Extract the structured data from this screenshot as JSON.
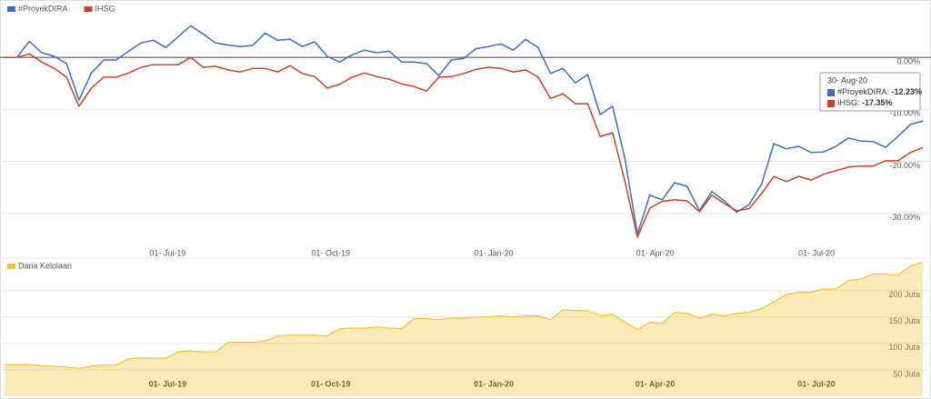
{
  "chart_data": [
    {
      "type": "line",
      "x": [
        "2019-03-31",
        "2019-04-07",
        "2019-04-14",
        "2019-04-21",
        "2019-04-28",
        "2019-05-05",
        "2019-05-12",
        "2019-05-19",
        "2019-05-26",
        "2019-06-02",
        "2019-06-09",
        "2019-06-16",
        "2019-06-23",
        "2019-06-30",
        "2019-07-07",
        "2019-07-14",
        "2019-07-21",
        "2019-07-28",
        "2019-08-04",
        "2019-08-11",
        "2019-08-18",
        "2019-08-25",
        "2019-09-01",
        "2019-09-08",
        "2019-09-15",
        "2019-09-22",
        "2019-09-29",
        "2019-10-06",
        "2019-10-13",
        "2019-10-20",
        "2019-10-27",
        "2019-11-03",
        "2019-11-10",
        "2019-11-17",
        "2019-11-24",
        "2019-12-01",
        "2019-12-08",
        "2019-12-15",
        "2019-12-22",
        "2019-12-29",
        "2020-01-05",
        "2020-01-12",
        "2020-01-19",
        "2020-01-26",
        "2020-02-02",
        "2020-02-09",
        "2020-02-16",
        "2020-02-23",
        "2020-03-01",
        "2020-03-08",
        "2020-03-15",
        "2020-03-22",
        "2020-03-29",
        "2020-04-05",
        "2020-04-12",
        "2020-04-19",
        "2020-04-26",
        "2020-05-03",
        "2020-05-10",
        "2020-05-17",
        "2020-05-24",
        "2020-05-31",
        "2020-06-07",
        "2020-06-14",
        "2020-06-21",
        "2020-06-28",
        "2020-07-05",
        "2020-07-12",
        "2020-07-19",
        "2020-07-26",
        "2020-08-02",
        "2020-08-09",
        "2020-08-16",
        "2020-08-23",
        "2020-08-30"
      ],
      "series": [
        {
          "name": "#ProyekDIRA",
          "color": "#3d6cc0",
          "values": [
            0,
            0,
            3.1,
            0.9,
            0.2,
            -1.2,
            -8.2,
            -3,
            -0.5,
            -0.5,
            1.2,
            2.8,
            3.3,
            1.9,
            4.0,
            6.1,
            4.5,
            2.8,
            2.4,
            2.1,
            2.3,
            4.7,
            3.3,
            3.5,
            2.1,
            3.0,
            0.2,
            -0.9,
            0.5,
            1.4,
            0.9,
            1.2,
            -0.9,
            -0.9,
            -1.2,
            -3.5,
            -0.5,
            -0.2,
            1.7,
            2.1,
            2.6,
            1.4,
            3.5,
            1.9,
            -3.1,
            -2.1,
            -4.9,
            -3.3,
            -11.0,
            -9.4,
            -19.5,
            -34.0,
            -26.5,
            -27.4,
            -24.1,
            -24.8,
            -29.5,
            -25.8,
            -27.6,
            -29.8,
            -28.3,
            -24.4,
            -16.6,
            -17.6,
            -17.1,
            -18.3,
            -18.2,
            -17.1,
            -15.5,
            -16.1,
            -16.2,
            -17.3,
            -15.2,
            -12.9,
            -12.23
          ]
        },
        {
          "name": "IHSG",
          "color": "#cc4125",
          "values": [
            0,
            0,
            0.7,
            -0.9,
            -2.1,
            -3.8,
            -9.4,
            -5.9,
            -3.8,
            -3.8,
            -3.0,
            -1.9,
            -1.4,
            -1.4,
            -1.4,
            0,
            -1.9,
            -1.7,
            -2.4,
            -2.8,
            -2.1,
            -2.1,
            -2.8,
            -1.6,
            -3.1,
            -3.7,
            -5.9,
            -5.2,
            -3.8,
            -3.0,
            -3.7,
            -4.2,
            -5.1,
            -5.6,
            -6.5,
            -3.8,
            -3.7,
            -3.1,
            -2.3,
            -1.9,
            -2.1,
            -2.8,
            -2.4,
            -3.8,
            -7.9,
            -7.0,
            -8.9,
            -8.9,
            -15.2,
            -14.5,
            -23.9,
            -34.6,
            -29.0,
            -27.7,
            -27.4,
            -27.6,
            -29.7,
            -26.5,
            -28.1,
            -29.5,
            -29.1,
            -26.2,
            -22.9,
            -23.9,
            -22.9,
            -23.6,
            -22.5,
            -21.8,
            -21.1,
            -20.9,
            -20.9,
            -19.9,
            -19.9,
            -18.3,
            -17.35
          ]
        }
      ],
      "ylim": [
        -36,
        10
      ],
      "yticks": [
        {
          "value": 0,
          "label": "0.00%"
        },
        {
          "value": -10,
          "label": "-10.00%"
        },
        {
          "value": -20,
          "label": "-20.00%"
        },
        {
          "value": -30,
          "label": "-30.00%"
        }
      ],
      "xticks": [
        {
          "value": "2019-07-01",
          "label": "01- Jul-19"
        },
        {
          "value": "2019-10-01",
          "label": "01- Oct-19"
        },
        {
          "value": "2020-01-01",
          "label": "01- Jan-20"
        },
        {
          "value": "2020-04-01",
          "label": "01- Apr-20"
        },
        {
          "value": "2020-07-01",
          "label": "01- Jul-20"
        }
      ],
      "grid": true,
      "tooltip": {
        "title": "30- Aug-20",
        "items": [
          {
            "label": "#ProyekDIRA: ",
            "value": "-12.23%"
          },
          {
            "label": "IHSG: ",
            "value": "-17.35%"
          }
        ]
      }
    },
    {
      "type": "area",
      "x": [
        "2019-03-31",
        "2019-04-07",
        "2019-04-14",
        "2019-04-21",
        "2019-04-28",
        "2019-05-05",
        "2019-05-12",
        "2019-05-19",
        "2019-05-26",
        "2019-06-02",
        "2019-06-09",
        "2019-06-16",
        "2019-06-23",
        "2019-06-30",
        "2019-07-07",
        "2019-07-14",
        "2019-07-21",
        "2019-07-28",
        "2019-08-04",
        "2019-08-11",
        "2019-08-18",
        "2019-08-25",
        "2019-09-01",
        "2019-09-08",
        "2019-09-15",
        "2019-09-22",
        "2019-09-29",
        "2019-10-06",
        "2019-10-13",
        "2019-10-20",
        "2019-10-27",
        "2019-11-03",
        "2019-11-10",
        "2019-11-17",
        "2019-11-24",
        "2019-12-01",
        "2019-12-08",
        "2019-12-15",
        "2019-12-22",
        "2019-12-29",
        "2020-01-05",
        "2020-01-12",
        "2020-01-19",
        "2020-01-26",
        "2020-02-02",
        "2020-02-09",
        "2020-02-16",
        "2020-02-23",
        "2020-03-01",
        "2020-03-08",
        "2020-03-15",
        "2020-03-22",
        "2020-03-29",
        "2020-04-05",
        "2020-04-12",
        "2020-04-19",
        "2020-04-26",
        "2020-05-03",
        "2020-05-10",
        "2020-05-17",
        "2020-05-24",
        "2020-05-31",
        "2020-06-07",
        "2020-06-14",
        "2020-06-21",
        "2020-06-28",
        "2020-07-05",
        "2020-07-12",
        "2020-07-19",
        "2020-07-26",
        "2020-08-02",
        "2020-08-09",
        "2020-08-16",
        "2020-08-23",
        "2020-08-30"
      ],
      "series": [
        {
          "name": "Dana Kelolaan",
          "color": "#f1c232",
          "values": [
            60,
            60,
            60,
            57,
            57,
            55,
            53,
            57,
            59,
            59,
            71,
            72,
            72,
            72,
            84,
            86,
            84,
            84,
            102,
            102,
            102,
            105,
            114,
            116,
            116,
            116,
            114,
            128,
            129,
            129,
            131,
            129,
            128,
            147,
            147,
            145,
            148,
            148,
            150,
            150,
            152,
            150,
            152,
            152,
            145,
            164,
            162,
            162,
            153,
            155,
            140,
            126,
            140,
            138,
            159,
            157,
            148,
            155,
            152,
            157,
            159,
            166,
            179,
            193,
            197,
            197,
            203,
            203,
            219,
            222,
            231,
            231,
            229,
            247,
            253
          ]
        }
      ],
      "ylim": [
        0,
        258
      ],
      "yticks": [
        {
          "value": 50,
          "label": "50 Juta"
        },
        {
          "value": 100,
          "label": "100 Juta"
        },
        {
          "value": 150,
          "label": "150 Juta"
        },
        {
          "value": 200,
          "label": "200 Juta"
        }
      ],
      "xticks": [
        {
          "value": "2019-07-01",
          "label": "01- Jul-19"
        },
        {
          "value": "2019-10-01",
          "label": "01- Oct-19"
        },
        {
          "value": "2020-01-01",
          "label": "01- Jan-20"
        },
        {
          "value": "2020-04-01",
          "label": "01- Apr-20"
        },
        {
          "value": "2020-07-01",
          "label": "01- Jul-20"
        }
      ],
      "grid": true
    }
  ]
}
